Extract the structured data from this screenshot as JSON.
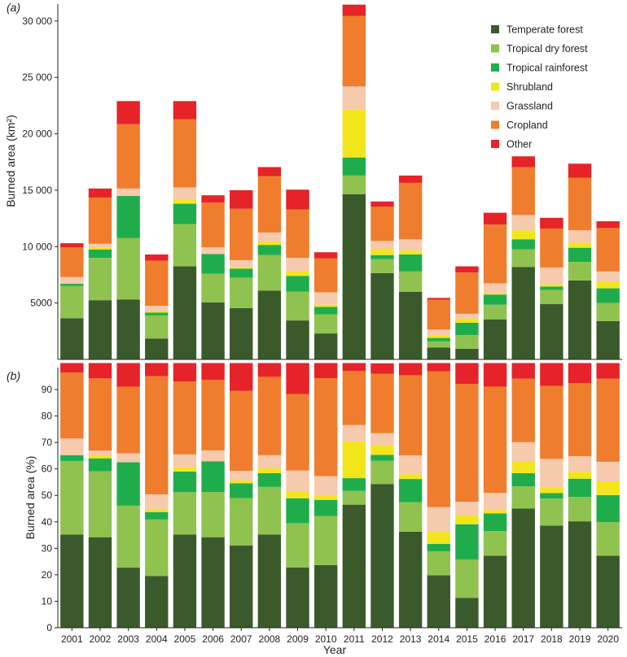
{
  "chart_data": [
    {
      "type": "stacked-bar",
      "panel_label": "(a)",
      "ylabel": "Burned area (km²)",
      "xlabel": "",
      "ylim": [
        0,
        31500
      ],
      "yticks": [
        5000,
        10000,
        15000,
        20000,
        25000,
        30000
      ],
      "ytick_labels": [
        "5000",
        "10 000",
        "15 000",
        "20 000",
        "25 000",
        "30 000"
      ],
      "grid": false,
      "legend": {
        "position": "top-right",
        "entries": [
          "Temperate forest",
          "Tropical dry forest",
          "Tropical rainforest",
          "Shrubland",
          "Grassland",
          "Cropland",
          "Other"
        ]
      },
      "categories": [
        "2001",
        "2002",
        "2003",
        "2004",
        "2005",
        "2006",
        "2007",
        "2008",
        "2009",
        "2010",
        "2011",
        "2012",
        "2013",
        "2014",
        "2015",
        "2016",
        "2017",
        "2018",
        "2019",
        "2020"
      ],
      "series": [
        {
          "name": "Temperate forest",
          "color": "#3b5a2b",
          "values": [
            3650,
            5250,
            5300,
            1850,
            8250,
            5050,
            4550,
            6100,
            3450,
            2300,
            14650,
            7650,
            6000,
            1050,
            950,
            3550,
            8200,
            4900,
            7000,
            3400
          ]
        },
        {
          "name": "Tropical dry forest",
          "color": "#8fc24f",
          "values": [
            2850,
            3750,
            5450,
            2050,
            3750,
            2550,
            2700,
            3150,
            2550,
            1700,
            1650,
            1250,
            1800,
            550,
            1200,
            1300,
            1550,
            1250,
            1650,
            1600
          ]
        },
        {
          "name": "Tropical rainforest",
          "color": "#1fad4c",
          "values": [
            200,
            750,
            3750,
            250,
            1800,
            1750,
            800,
            900,
            1400,
            650,
            1600,
            350,
            1500,
            300,
            1100,
            900,
            900,
            300,
            1250,
            1300
          ]
        },
        {
          "name": "Shrubland",
          "color": "#f2e51c",
          "values": [
            0,
            150,
            0,
            100,
            350,
            0,
            150,
            300,
            400,
            200,
            4250,
            550,
            350,
            250,
            350,
            150,
            800,
            200,
            450,
            600
          ]
        },
        {
          "name": "Grassland",
          "color": "#f7c9ad",
          "values": [
            600,
            350,
            650,
            500,
            1100,
            600,
            600,
            800,
            1200,
            1100,
            2050,
            700,
            1000,
            500,
            450,
            850,
            1350,
            1500,
            1100,
            900
          ]
        },
        {
          "name": "Cropland",
          "color": "#ef7d2d",
          "values": [
            2650,
            4100,
            5700,
            4000,
            6050,
            3950,
            4550,
            5000,
            4300,
            3000,
            6250,
            3050,
            5000,
            2650,
            3650,
            5200,
            4250,
            3450,
            4650,
            3850
          ]
        },
        {
          "name": "Other",
          "color": "#e52329",
          "values": [
            350,
            800,
            2050,
            550,
            1600,
            650,
            1650,
            800,
            1750,
            550,
            1000,
            450,
            650,
            150,
            550,
            1050,
            950,
            950,
            1250,
            600
          ]
        }
      ]
    },
    {
      "type": "stacked-bar",
      "panel_label": "(b)",
      "ylabel": "Burned area (%)",
      "xlabel": "Year",
      "ylim": [
        0,
        98.3
      ],
      "yticks": [
        0,
        10,
        20,
        30,
        40,
        50,
        60,
        70,
        80,
        90
      ],
      "ytick_labels": [
        "0",
        "10",
        "20",
        "30",
        "40",
        "50",
        "60",
        "70",
        "80",
        "90"
      ],
      "grid": false,
      "categories": [
        "2001",
        "2002",
        "2003",
        "2004",
        "2005",
        "2006",
        "2007",
        "2008",
        "2009",
        "2010",
        "2011",
        "2012",
        "2013",
        "2014",
        "2015",
        "2016",
        "2017",
        "2018",
        "2019",
        "2020"
      ],
      "series": [
        {
          "name": "Temperate forest",
          "color": "#3b5a2b",
          "values": [
            35.2,
            34.2,
            22.7,
            19.5,
            35.2,
            34.2,
            31.1,
            35.2,
            22.8,
            23.7,
            46.5,
            54.3,
            36.3,
            19.8,
            11.3,
            27.2,
            45,
            38.6,
            40.2,
            27.2
          ]
        },
        {
          "name": "Tropical dry forest",
          "color": "#8fc24f",
          "values": [
            27.8,
            24.9,
            23.4,
            21.4,
            16,
            17.1,
            17.9,
            18,
            16.7,
            18.5,
            5.2,
            8.8,
            11.1,
            9.1,
            14.5,
            9.3,
            8.4,
            10.2,
            9.2,
            12.7
          ]
        },
        {
          "name": "Tropical rainforest",
          "color": "#1fad4c",
          "values": [
            2.2,
            4.9,
            16.4,
            2.8,
            7.8,
            11.6,
            5.6,
            5.2,
            9.4,
            6.1,
            4.8,
            2.2,
            8.8,
            2.8,
            13.3,
            6.7,
            5,
            2.1,
            6.9,
            10.2
          ]
        },
        {
          "name": "Shrubland",
          "color": "#f2e51c",
          "values": [
            0,
            1.1,
            0,
            1.2,
            1.6,
            0,
            1,
            1.8,
            2.6,
            1.6,
            13.9,
            3.6,
            1.8,
            4.5,
            3.5,
            1.2,
            4.6,
            2.2,
            2.6,
            5.2
          ]
        },
        {
          "name": "Grassland",
          "color": "#f7c9ad",
          "values": [
            6.3,
            1.8,
            3.4,
            5.5,
            4.9,
            4.1,
            3.7,
            5,
            7.9,
            7.4,
            6.2,
            4.6,
            7.1,
            9.4,
            5,
            6.6,
            7.1,
            10.7,
            5.9,
            7.4
          ]
        },
        {
          "name": "Cropland",
          "color": "#ef7d2d",
          "values": [
            24.9,
            27.3,
            25.2,
            44.6,
            27.5,
            26.7,
            30.2,
            29.6,
            28.9,
            37,
            20.4,
            22.5,
            30.3,
            51.3,
            44.5,
            40.1,
            24,
            27.6,
            27.6,
            31.4
          ]
        },
        {
          "name": "Other",
          "color": "#e52329",
          "values": [
            3.6,
            5.8,
            8.9,
            5,
            7,
            6.3,
            10.5,
            5.2,
            11.7,
            5.7,
            3,
            3.9,
            4.6,
            3.1,
            7.9,
            8.9,
            5.9,
            8.6,
            7.6,
            5.9
          ]
        }
      ]
    }
  ]
}
